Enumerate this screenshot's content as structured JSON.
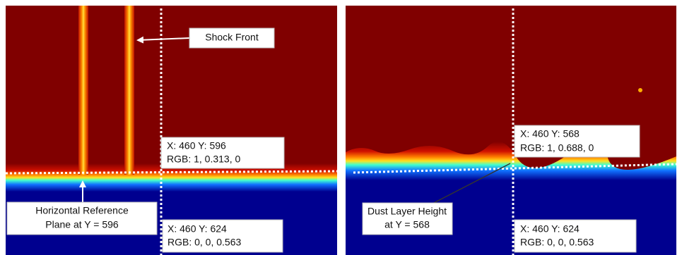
{
  "left_panel": {
    "shock_label": "Shock Front",
    "probe_top": [
      "X: 460 Y: 596",
      "RGB: 1, 0.313, 0"
    ],
    "reference_label": [
      "Horizontal Reference",
      "Plane at Y = 596"
    ],
    "probe_bottom": [
      "X: 460 Y: 624",
      "RGB: 0, 0, 0.563"
    ]
  },
  "right_panel": {
    "probe_top": [
      "X: 460 Y: 568",
      "RGB: 1, 0.688, 0"
    ],
    "height_label": [
      "Dust Layer Height",
      "at Y = 568"
    ],
    "probe_bottom": [
      "X: 460 Y: 624",
      "RGB: 0, 0, 0.563"
    ]
  }
}
